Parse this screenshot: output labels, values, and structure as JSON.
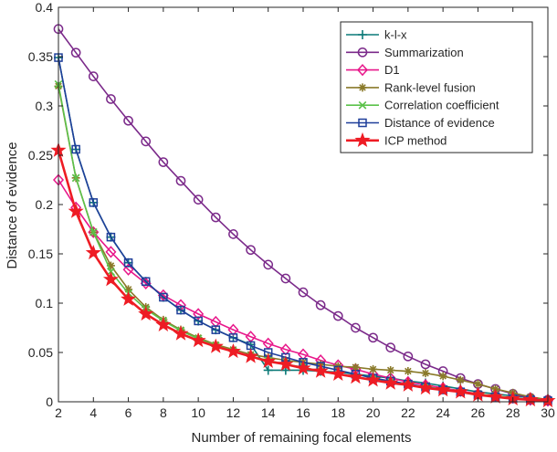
{
  "chart_data": {
    "type": "line",
    "xlabel": "Number of remaining focal elements",
    "ylabel": "Distance of evidence",
    "xlim": [
      2,
      30
    ],
    "ylim": [
      0,
      0.4
    ],
    "xticks": [
      2,
      4,
      6,
      8,
      10,
      12,
      14,
      16,
      18,
      20,
      22,
      24,
      26,
      28,
      30
    ],
    "yticks": [
      0,
      0.05,
      0.1,
      0.15,
      0.2,
      0.25,
      0.3,
      0.35,
      0.4
    ],
    "xtick_labels": [
      "2",
      "4",
      "6",
      "8",
      "10",
      "12",
      "14",
      "16",
      "18",
      "20",
      "22",
      "24",
      "26",
      "28",
      "30"
    ],
    "ytick_labels": [
      "0",
      "0.05",
      "0.1",
      "0.15",
      "0.2",
      "0.25",
      "0.3",
      "0.35",
      "0.4"
    ],
    "grid": false,
    "legend_position": "top-right",
    "x": [
      2,
      3,
      4,
      5,
      6,
      7,
      8,
      9,
      10,
      11,
      12,
      13,
      14,
      15,
      16,
      17,
      18,
      19,
      20,
      21,
      22,
      23,
      24,
      25,
      26,
      27,
      28,
      29,
      30
    ],
    "series": [
      {
        "name": "k-l-x",
        "color": "#0c7a78",
        "marker": "plus",
        "values": [
          0.349,
          0.256,
          0.202,
          0.167,
          0.141,
          0.122,
          0.106,
          0.093,
          0.082,
          0.073,
          0.065,
          0.058,
          0.032,
          0.032,
          0.032,
          0.031,
          0.03,
          0.028,
          0.026,
          0.024,
          0.021,
          0.019,
          0.016,
          0.013,
          0.01,
          0.008,
          0.006,
          0.004,
          0.002
        ]
      },
      {
        "name": "Summarization",
        "color": "#7b2a8a",
        "marker": "circle",
        "values": [
          0.378,
          0.354,
          0.33,
          0.307,
          0.285,
          0.264,
          0.243,
          0.224,
          0.205,
          0.187,
          0.17,
          0.154,
          0.139,
          0.125,
          0.111,
          0.098,
          0.087,
          0.075,
          0.065,
          0.055,
          0.046,
          0.038,
          0.031,
          0.024,
          0.018,
          0.013,
          0.008,
          0.004,
          0.002
        ]
      },
      {
        "name": "D1",
        "color": "#e8178a",
        "marker": "diamond",
        "values": [
          0.225,
          0.197,
          0.172,
          0.152,
          0.134,
          0.12,
          0.108,
          0.098,
          0.089,
          0.081,
          0.073,
          0.066,
          0.059,
          0.053,
          0.048,
          0.042,
          0.037,
          0.033,
          0.028,
          0.024,
          0.02,
          0.017,
          0.014,
          0.011,
          0.008,
          0.006,
          0.004,
          0.002,
          0.001
        ]
      },
      {
        "name": "Rank-level fusion",
        "color": "#8a7a2a",
        "marker": "star",
        "values": [
          0.32,
          0.227,
          0.172,
          0.138,
          0.114,
          0.096,
          0.083,
          0.073,
          0.065,
          0.058,
          0.053,
          0.048,
          0.045,
          0.042,
          0.04,
          0.038,
          0.036,
          0.035,
          0.033,
          0.032,
          0.031,
          0.029,
          0.026,
          0.022,
          0.018,
          0.013,
          0.009,
          0.005,
          0.002
        ]
      },
      {
        "name": "Correlation coefficient",
        "color": "#5bc24a",
        "marker": "x",
        "values": [
          0.322,
          0.227,
          0.172,
          0.132,
          0.11,
          0.094,
          0.082,
          0.072,
          0.064,
          0.057,
          0.051,
          0.046,
          0.042,
          0.038,
          0.035,
          0.031,
          0.028,
          0.025,
          0.023,
          0.02,
          0.017,
          0.015,
          0.013,
          0.01,
          0.008,
          0.006,
          0.004,
          0.002,
          0.001
        ]
      },
      {
        "name": "Distance of evidence",
        "color": "#1f3f9a",
        "marker": "square",
        "values": [
          0.349,
          0.256,
          0.202,
          0.167,
          0.141,
          0.122,
          0.106,
          0.093,
          0.082,
          0.073,
          0.065,
          0.057,
          0.05,
          0.045,
          0.04,
          0.036,
          0.032,
          0.028,
          0.024,
          0.021,
          0.018,
          0.015,
          0.012,
          0.01,
          0.007,
          0.005,
          0.003,
          0.002,
          0.001
        ]
      },
      {
        "name": "ICP method",
        "color": "#ee1c24",
        "marker": "pentagram",
        "values": [
          0.255,
          0.193,
          0.151,
          0.124,
          0.104,
          0.089,
          0.078,
          0.069,
          0.062,
          0.056,
          0.051,
          0.046,
          0.041,
          0.038,
          0.034,
          0.031,
          0.028,
          0.025,
          0.022,
          0.019,
          0.017,
          0.014,
          0.012,
          0.01,
          0.007,
          0.005,
          0.003,
          0.002,
          0.001
        ]
      }
    ]
  }
}
